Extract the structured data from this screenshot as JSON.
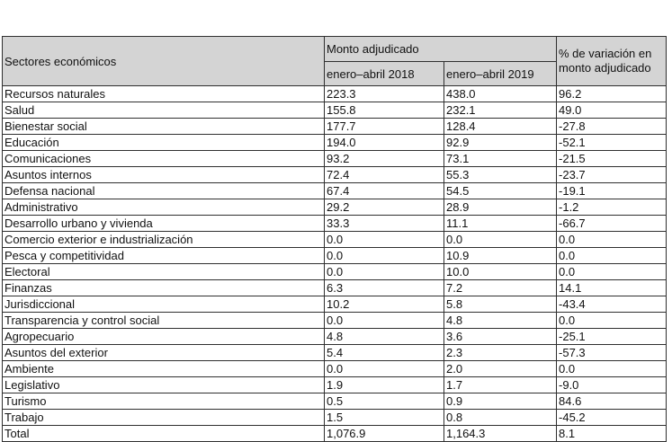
{
  "colors": {
    "header_bg": "#d4d4d4",
    "border": "#2f2f2f",
    "text": "#111111",
    "page_bg": "#ffffff"
  },
  "table": {
    "header": {
      "sectors": "Sectores económicos",
      "amount_group": "Monto adjudicado",
      "period_2018": "enero–abril 2018",
      "period_2019": "enero–abril 2019",
      "variation": "% de variación en monto adjudicado"
    },
    "rows": [
      {
        "sector": "Recursos naturales",
        "y2018": "223.3",
        "y2019": "438.0",
        "variation": "96.2"
      },
      {
        "sector": "Salud",
        "y2018": "155.8",
        "y2019": "232.1",
        "variation": "49.0"
      },
      {
        "sector": "Bienestar social",
        "y2018": "177.7",
        "y2019": "128.4",
        "variation": "-27.8"
      },
      {
        "sector": "Educación",
        "y2018": "194.0",
        "y2019": "92.9",
        "variation": "-52.1"
      },
      {
        "sector": "Comunicaciones",
        "y2018": "93.2",
        "y2019": "73.1",
        "variation": "-21.5"
      },
      {
        "sector": "Asuntos internos",
        "y2018": "72.4",
        "y2019": "55.3",
        "variation": "-23.7"
      },
      {
        "sector": "Defensa nacional",
        "y2018": "67.4",
        "y2019": "54.5",
        "variation": "-19.1"
      },
      {
        "sector": "Administrativo",
        "y2018": "29.2",
        "y2019": "28.9",
        "variation": "-1.2"
      },
      {
        "sector": "Desarrollo urbano y vivienda",
        "y2018": "33.3",
        "y2019": "11.1",
        "variation": "-66.7"
      },
      {
        "sector": "Comercio exterior e industrialización",
        "y2018": "0.0",
        "y2019": "0.0",
        "variation": "0.0"
      },
      {
        "sector": "Pesca y competitividad",
        "y2018": "0.0",
        "y2019": "10.9",
        "variation": "0.0"
      },
      {
        "sector": "Electoral",
        "y2018": "0.0",
        "y2019": "10.0",
        "variation": "0.0"
      },
      {
        "sector": "Finanzas",
        "y2018": "6.3",
        "y2019": "7.2",
        "variation": "14.1"
      },
      {
        "sector": "Jurisdiccional",
        "y2018": "10.2",
        "y2019": "5.8",
        "variation": "-43.4"
      },
      {
        "sector": "Transparencia y control social",
        "y2018": "0.0",
        "y2019": "4.8",
        "variation": "0.0"
      },
      {
        "sector": "Agropecuario",
        "y2018": "4.8",
        "y2019": "3.6",
        "variation": "-25.1"
      },
      {
        "sector": "Asuntos del exterior",
        "y2018": "5.4",
        "y2019": "2.3",
        "variation": "-57.3"
      },
      {
        "sector": "Ambiente",
        "y2018": "0.0",
        "y2019": "2.0",
        "variation": "0.0"
      },
      {
        "sector": "Legislativo",
        "y2018": "1.9",
        "y2019": "1.7",
        "variation": "-9.0"
      },
      {
        "sector": "Turismo",
        "y2018": "0.5",
        "y2019": "0.9",
        "variation": "84.6"
      },
      {
        "sector": "Trabajo",
        "y2018": "1.5",
        "y2019": "0.8",
        "variation": "-45.2"
      }
    ],
    "total_row": {
      "sector": "Total",
      "y2018": "1,076.9",
      "y2019": "1,164.3",
      "variation": "8.1"
    }
  }
}
